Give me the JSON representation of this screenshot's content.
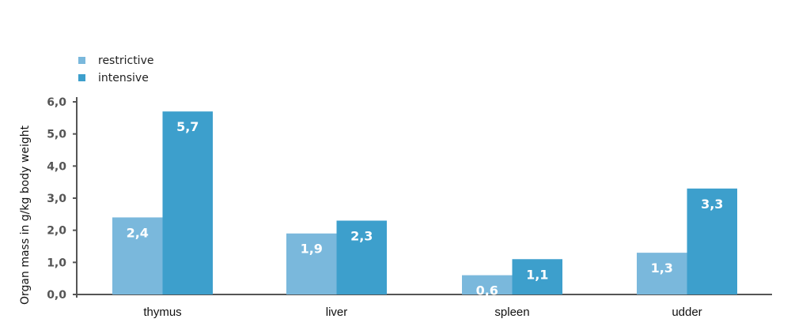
{
  "chart_data": {
    "type": "bar",
    "title": "",
    "xlabel": "",
    "ylabel": "Organ mass in g/kg body weight",
    "ylim": [
      0,
      6
    ],
    "yticks": [
      "0,0",
      "1,0",
      "2,0",
      "3,0",
      "4,0",
      "5,0",
      "6,0"
    ],
    "categories": [
      "thymus",
      "liver",
      "spleen",
      "udder"
    ],
    "series": [
      {
        "name": "restrictive",
        "color": "#7ab8dc",
        "values": [
          2.4,
          1.9,
          0.6,
          1.3
        ],
        "labels": [
          "2,4",
          "1,9",
          "0,6",
          "1,3"
        ]
      },
      {
        "name": "intensive",
        "color": "#3d9fcc",
        "values": [
          5.7,
          2.3,
          1.1,
          3.3
        ],
        "labels": [
          "5,7",
          "2,3",
          "1,1",
          "3,3"
        ]
      }
    ],
    "legend_position": "top-left",
    "grid": false
  }
}
